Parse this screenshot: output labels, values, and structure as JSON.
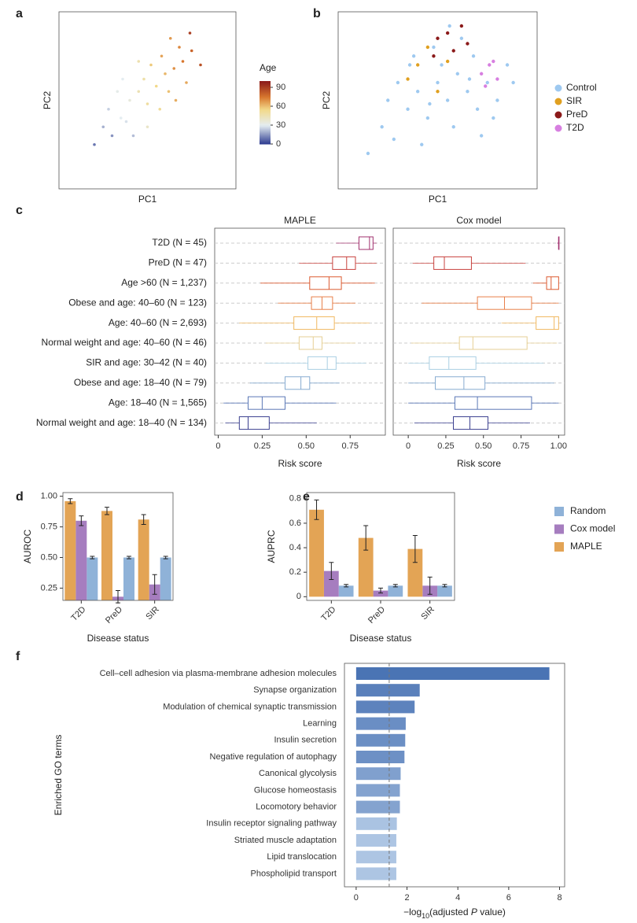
{
  "chart_data": [
    {
      "type": "scatter",
      "panel": "a",
      "xlabel": "PC1",
      "ylabel": "PC2",
      "xlim": [
        0,
        100
      ],
      "ylim": [
        0,
        100
      ],
      "x": [
        20,
        25,
        30,
        28,
        35,
        40,
        38,
        45,
        50,
        48,
        55,
        52,
        60,
        58,
        62,
        65,
        70,
        68,
        72,
        75,
        42,
        33,
        57,
        63,
        80,
        50,
        45,
        66,
        36,
        74
      ],
      "y": [
        25,
        35,
        30,
        45,
        40,
        50,
        38,
        55,
        48,
        62,
        58,
        70,
        65,
        75,
        55,
        68,
        72,
        80,
        60,
        78,
        30,
        55,
        45,
        85,
        70,
        35,
        72,
        50,
        62,
        88
      ],
      "values": [
        10,
        20,
        15,
        25,
        30,
        35,
        28,
        45,
        50,
        48,
        55,
        58,
        62,
        66,
        60,
        70,
        75,
        72,
        65,
        80,
        22,
        32,
        52,
        68,
        85,
        40,
        46,
        64,
        30,
        90
      ],
      "colorbar_title": "Age",
      "clim": [
        0,
        100
      ],
      "cticks": [
        0,
        30,
        60,
        90
      ],
      "colorscale": [
        {
          "value": 0,
          "color": "#2b3a8f"
        },
        {
          "value": 30,
          "color": "#e4edf1"
        },
        {
          "value": 55,
          "color": "#f2d98a"
        },
        {
          "value": 75,
          "color": "#d8772e"
        },
        {
          "value": 100,
          "color": "#8b1a1a"
        }
      ]
    },
    {
      "type": "scatter",
      "panel": "b",
      "xlabel": "PC1",
      "ylabel": "PC2",
      "xlim": [
        0,
        100
      ],
      "ylim": [
        0,
        100
      ],
      "legend": "right",
      "series": [
        {
          "name": "Control",
          "color": "#9ec9f0",
          "x": [
            15,
            22,
            28,
            35,
            40,
            45,
            50,
            55,
            60,
            65,
            70,
            75,
            80,
            85,
            30,
            38,
            48,
            58,
            68,
            78,
            42,
            52,
            62,
            72,
            25,
            88,
            56,
            46,
            66,
            36
          ],
          "y": [
            20,
            35,
            28,
            45,
            55,
            40,
            60,
            50,
            65,
            55,
            45,
            60,
            50,
            70,
            60,
            75,
            80,
            35,
            75,
            40,
            25,
            70,
            85,
            30,
            50,
            60,
            92,
            48,
            62,
            70
          ]
        },
        {
          "name": "SIR",
          "color": "#e0a020",
          "x": [
            40,
            45,
            35,
            55,
            50
          ],
          "y": [
            70,
            80,
            62,
            72,
            55
          ]
        },
        {
          "name": "PreD",
          "color": "#8b1a1a",
          "x": [
            50,
            55,
            58,
            62,
            65,
            48
          ],
          "y": [
            85,
            88,
            78,
            92,
            82,
            75
          ]
        },
        {
          "name": "T2D",
          "color": "#d77fe0",
          "x": [
            72,
            76,
            80,
            74,
            78
          ],
          "y": [
            65,
            70,
            62,
            58,
            72
          ]
        }
      ]
    },
    {
      "type": "box",
      "panel": "c",
      "xlabel": "Risk score",
      "grid": true,
      "categories": [
        "T2D (N = 45)",
        "PreD (N = 47)",
        "Age >60 (N = 1,237)",
        "Obese and age: 40–60 (N = 123)",
        "Age: 40–60 (N = 2,693)",
        "Normal weight and age: 40–60 (N = 46)",
        "SIR and age: 30–42 (N = 40)",
        "Obese and age: 18–40 (N = 79)",
        "Age: 18–40 (N = 1,565)",
        "Normal weight and age: 18–40 (N = 134)"
      ],
      "colors": [
        "#a0306e",
        "#c8423e",
        "#dc5a30",
        "#e8804a",
        "#f0b860",
        "#e6cf94",
        "#a9cfe3",
        "#86aad0",
        "#5b78b6",
        "#3b3f8f"
      ],
      "panels": [
        {
          "title": "MAPLE",
          "xlim": [
            -0.02,
            0.95
          ],
          "xticks": [
            0,
            0.25,
            {
              "value": 0.5,
              "label": "0.50"
            },
            0.75
          ],
          "stats": [
            [
              0.67,
              0.8,
              0.86,
              0.88,
              0.9
            ],
            [
              0.46,
              0.65,
              0.73,
              0.78,
              0.9
            ],
            [
              0.24,
              0.52,
              0.63,
              0.7,
              0.89
            ],
            [
              0.34,
              0.53,
              0.59,
              0.65,
              0.78
            ],
            [
              0.12,
              0.43,
              0.56,
              0.66,
              0.86
            ],
            [
              0.27,
              0.46,
              0.54,
              0.59,
              0.78
            ],
            [
              0.27,
              0.51,
              0.62,
              0.67,
              0.84
            ],
            [
              0.18,
              0.38,
              0.47,
              0.52,
              0.69
            ],
            [
              0.03,
              0.17,
              0.25,
              0.38,
              0.67
            ],
            [
              0.04,
              0.12,
              0.17,
              0.29,
              0.56
            ]
          ]
        },
        {
          "title": "Cox model",
          "xlim": [
            -0.1,
            1.04
          ],
          "xticks": [
            0,
            0.25,
            {
              "value": 0.5,
              "label": "0.50"
            },
            0.75,
            {
              "value": 1,
              "label": "1.00"
            }
          ],
          "stats": [
            [
              0.99,
              1.0,
              1.0,
              1.0,
              1.0
            ],
            [
              0.03,
              0.17,
              0.24,
              0.42,
              0.78
            ],
            [
              0.83,
              0.92,
              0.95,
              1.0,
              1.0
            ],
            [
              0.09,
              0.46,
              0.64,
              0.82,
              1.0
            ],
            [
              0.62,
              0.85,
              0.97,
              1.0,
              1.0
            ],
            [
              0.02,
              0.34,
              0.43,
              0.79,
              0.99
            ],
            [
              0.0,
              0.14,
              0.27,
              0.45,
              0.9
            ],
            [
              0.0,
              0.18,
              0.37,
              0.51,
              0.97
            ],
            [
              0.0,
              0.31,
              0.46,
              0.82,
              1.0
            ],
            [
              0.04,
              0.3,
              0.41,
              0.53,
              0.81
            ]
          ]
        }
      ]
    },
    {
      "type": "bar",
      "xlabel": "Disease status",
      "categories": [
        "T2D",
        "PreD",
        "SIR"
      ],
      "legend": "right",
      "series": [
        {
          "name": "Random",
          "color": "#8fb2d8"
        },
        {
          "name": "Cox model",
          "color": "#a67dbf"
        },
        {
          "name": "MAPLE",
          "color": "#e3a455"
        }
      ],
      "panels": [
        {
          "panel": "d",
          "ylabel": "AUROC",
          "ylim": [
            0.15,
            1.03
          ],
          "yticks": [
            0.25,
            {
              "value": 0.5,
              "label": "0.50"
            },
            0.75,
            {
              "value": 1,
              "label": "1.00"
            }
          ],
          "values": [
            [
              0.5,
              0.5,
              0.5
            ],
            [
              0.8,
              0.18,
              0.28
            ],
            [
              0.96,
              0.88,
              0.81
            ]
          ],
          "errors": [
            [
              0.01,
              0.01,
              0.01
            ],
            [
              0.04,
              0.05,
              0.08
            ],
            [
              0.02,
              0.03,
              0.04
            ]
          ]
        },
        {
          "panel": "e",
          "ylabel": "AUPRC",
          "ylim": [
            -0.03,
            0.85
          ],
          "yticks": [
            0,
            0.2,
            0.4,
            0.6,
            0.8
          ],
          "values": [
            [
              0.09,
              0.09,
              0.09
            ],
            [
              0.21,
              0.05,
              0.09
            ],
            [
              0.71,
              0.48,
              0.39
            ]
          ],
          "errors": [
            [
              0.01,
              0.01,
              0.01
            ],
            [
              0.07,
              0.02,
              0.07
            ],
            [
              0.08,
              0.1,
              0.11
            ]
          ]
        }
      ]
    },
    {
      "type": "barh",
      "panel": "f",
      "ylabel": "Enriched GO terms",
      "xlabel_parts": [
        "−log",
        "10",
        "(adjusted ",
        "P",
        " value)"
      ],
      "xlim": [
        -0.46,
        8.2
      ],
      "xticks": [
        0,
        2,
        4,
        6,
        8
      ],
      "refline": 1.3,
      "categories": [
        "Cell–cell adhesion via plasma-membrane adhesion molecules",
        "Synapse organization",
        "Modulation of chemical synaptic transmission",
        "Learning",
        "Insulin secretion",
        "Negative regulation of autophagy",
        "Canonical glycolysis",
        "Glucose homeostasis",
        "Locomotory behavior",
        "Insulin receptor signaling pathway",
        "Striated muscle adaptation",
        "Lipid translocation",
        "Phospholipid transport"
      ],
      "values": [
        7.6,
        2.5,
        2.3,
        1.95,
        1.93,
        1.9,
        1.75,
        1.72,
        1.72,
        1.6,
        1.58,
        1.58,
        1.58
      ],
      "colors": [
        "#4a74b4",
        "#5a80bb",
        "#5d83bd",
        "#6a8ec4",
        "#6b8fc4",
        "#6d90c5",
        "#80a0ce",
        "#84a3cf",
        "#84a3cf",
        "#aac3e2",
        "#adc5e3",
        "#adc5e3",
        "#adc5e3"
      ]
    }
  ]
}
